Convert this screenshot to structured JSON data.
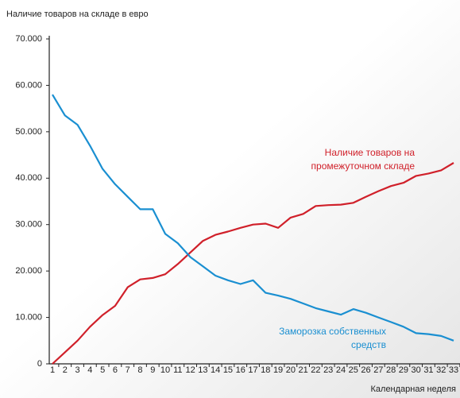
{
  "chart_data": {
    "type": "line",
    "y_label": "Наличие товаров на складе в евро",
    "x_label": "Календарная неделя",
    "categories": [
      "1",
      "2",
      "3",
      "4",
      "5",
      "6",
      "7",
      "8",
      "9",
      "10",
      "11",
      "12",
      "13",
      "14",
      "15",
      "16",
      "17",
      "18",
      "19",
      "20",
      "21",
      "22",
      "23",
      "24",
      "25",
      "26",
      "27",
      "28",
      "29",
      "30",
      "31",
      "32",
      "33"
    ],
    "series": [
      {
        "labels": [
          "Наличие товаров на",
          "промежуточном складе"
        ],
        "color": "#d0202a",
        "values": [
          0,
          2500,
          5000,
          8000,
          10500,
          12500,
          16500,
          18200,
          18500,
          19300,
          21500,
          24000,
          26500,
          27800,
          28500,
          29300,
          30000,
          30200,
          29300,
          31500,
          32300,
          34000,
          34200,
          34300,
          34700,
          36000,
          37200,
          38300,
          39000,
          40500,
          41000,
          41700,
          43300
        ]
      },
      {
        "labels": [
          "Заморозка собственных",
          "средств"
        ],
        "color": "#1a8fd1",
        "values": [
          58000,
          53500,
          51500,
          47000,
          42000,
          38700,
          36000,
          33300,
          33300,
          28000,
          26000,
          23000,
          21000,
          19000,
          18000,
          17200,
          18000,
          15300,
          14700,
          14000,
          13000,
          12000,
          11300,
          10600,
          11800,
          11000,
          10000,
          9000,
          8000,
          6600,
          6400,
          6000,
          5000
        ]
      }
    ],
    "ylim": [
      0,
      70000
    ],
    "yticks": [
      0,
      {
        "value": 10000,
        "label": "10.000"
      },
      {
        "value": 20000,
        "label": "20.000"
      },
      {
        "value": 30000,
        "label": "30.000"
      },
      {
        "value": 40000,
        "label": "40.000"
      },
      {
        "value": 50000,
        "label": "50.000"
      },
      {
        "value": 60000,
        "label": "60.000"
      },
      {
        "value": 70000,
        "label": "70.000"
      }
    ]
  }
}
